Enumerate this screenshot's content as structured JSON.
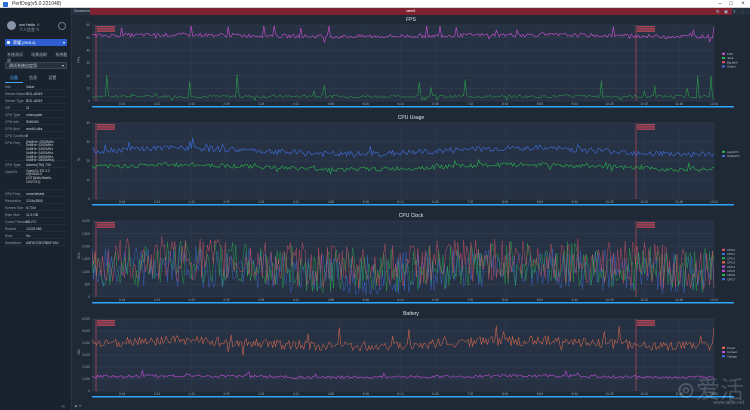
{
  "window": {
    "title": "PerfDog(v5.0.221048)",
    "controls": [
      "minimize-icon",
      "maximize-icon",
      "close-icon"
    ]
  },
  "user": {
    "name": "xxx Hello ☆",
    "sub": "个人信息 ✎"
  },
  "device": {
    "label": "荣耀 (HM14)"
  },
  "subnav": [
    "系统测试",
    "场景选取",
    "系统截屏"
  ],
  "app_select": "测试系统自定用",
  "tabs": [
    "设备",
    "信息",
    "设置"
  ],
  "device_info": [
    {
      "k": "Info",
      "v": "Value"
    },
    {
      "k": "Device Name",
      "v": "BOL-AN19"
    },
    {
      "k": "Device Type",
      "v": "BOL-AN19"
    },
    {
      "k": "OS",
      "v": "11"
    },
    {
      "k": "CPU Type",
      "v": "unisocpale"
    },
    {
      "k": "CPU Info",
      "v": "SM8450"
    },
    {
      "k": "CPU Arch",
      "v": "arm64-v8a"
    },
    {
      "k": "CPU Coreifurc",
      "v": "8"
    },
    {
      "k": "CPU Freq",
      "v": "[0xMHz~2200MHz 0xMHz~2200MHz 0xMHz~2200MHz 0xMHz~2400MHz 0xMHz~2600MHz 0xMHz~2800MHz]",
      "tall": true
    },
    {
      "k": "GPU Type",
      "v": "Adreno(TM) 730"
    },
    {
      "k": "OpenGL",
      "v": "OpenGL ES 3.2 V@0615.0 (GIT@d6c0ba0e, 10/27/21)",
      "tall": true
    },
    {
      "k": "GPU Freq",
      "v": "none/details"
    },
    {
      "k": "Resolution",
      "v": "1224x2800"
    },
    {
      "k": "Screen Size",
      "v": "6.73 in"
    },
    {
      "k": "Ram Size",
      "v": "11.6 GB"
    },
    {
      "k": "Cores Threaded",
      "v": "23.4°C"
    },
    {
      "k": "Rooted",
      "v": "12232 MB"
    },
    {
      "k": "Root",
      "v": "No"
    },
    {
      "k": "SerialNum",
      "v": "A3F6C23D7860F1A0"
    }
  ],
  "strip": {
    "left": "SessionList",
    "active": "label1"
  },
  "time_ticks": [
    "0:16",
    "1:03",
    "1:43",
    "2:39",
    "3:24",
    "4:11",
    "4:58",
    "5:46",
    "6:14",
    "6:48",
    "7:32",
    "8:16",
    "8:59",
    "9:44",
    "10:28",
    "11:02",
    "11:48",
    "12:04"
  ],
  "colors": {
    "fps": "#d24fd6",
    "jank": "#2ab34a",
    "cpu_total": "#3f6fe0",
    "cpu_app": "#2ab34a",
    "clk_a": "#e0556a",
    "clk_b": "#3f6fe0",
    "clk_c": "#2ab34a",
    "bat_a": "#ef6e4c",
    "bat_b": "#c24fd6",
    "marker": "#d24a5a",
    "scroll": "#2ea8ff"
  },
  "charts": [
    {
      "title": "FPS",
      "unit": "FPS",
      "ymax": 60,
      "y_ticks": [
        "60",
        "50",
        "40",
        "30",
        "20",
        "10",
        "0"
      ],
      "legend": [
        "FPS",
        "Jank",
        "BigJank",
        "Stutter"
      ]
    },
    {
      "title": "CPU Usage",
      "unit": "%",
      "ymax": 40,
      "y_ticks": [
        "40",
        "30",
        "20",
        "10",
        "0"
      ],
      "legend": [
        "AppCPU",
        "TotalCPU"
      ]
    },
    {
      "title": "CPU Clock",
      "unit": "MHz",
      "ymax": 3000,
      "y_ticks": [
        "3,000",
        "2,500",
        "2,000",
        "1,500",
        "1,000",
        "500",
        "0"
      ],
      "legend": [
        "CPU0",
        "CPU1",
        "CPU2",
        "CPU3",
        "CPU4",
        "CPU5",
        "CPU6",
        "CPU7"
      ]
    },
    {
      "title": "Battery",
      "unit": "mW",
      "ymax": 6000,
      "y_ticks": [
        "6,000",
        "5,000",
        "4,000",
        "3,000",
        "2,000",
        "1,000",
        "0"
      ],
      "legend": [
        "Power",
        "Current",
        "Voltage"
      ]
    }
  ],
  "watermark": "爱活",
  "watermark_url": "www.ialife.net"
}
